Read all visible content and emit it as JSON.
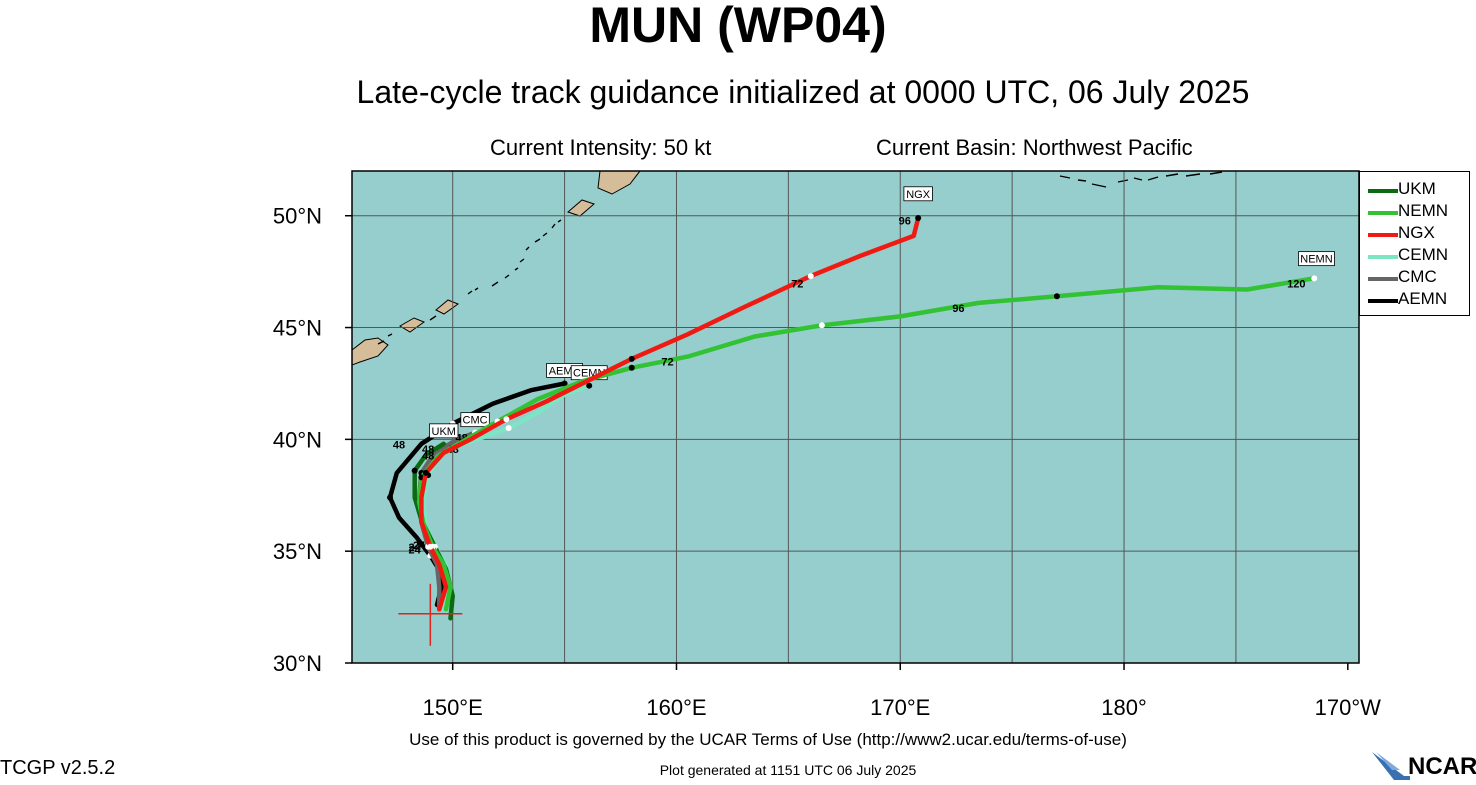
{
  "header": {
    "title": "MUN (WP04)",
    "subtitle": "Late-cycle track guidance initialized at 0000 UTC, 06 July 2025",
    "intensity": "Current Intensity: 50 kt",
    "basin": "Current Basin: Northwest Pacific"
  },
  "colors": {
    "ocean": "#96cecd",
    "land": "#d6bd9a",
    "grid": "#555555"
  },
  "legend": [
    {
      "name": "UKM",
      "color": "#0b6b13"
    },
    {
      "name": "NEMN",
      "color": "#33c233"
    },
    {
      "name": "NGX",
      "color": "#ef1b12"
    },
    {
      "name": "CEMN",
      "color": "#7ce5c4"
    },
    {
      "name": "CMC",
      "color": "#666666"
    },
    {
      "name": "AEMN",
      "color": "#000000"
    }
  ],
  "chart_data": {
    "type": "line",
    "title": "MUN (WP04)",
    "xlim": [
      145.5,
      -169.5
    ],
    "ylim": [
      30,
      52
    ],
    "x_ticks": [
      {
        "lon": 150,
        "label": "150°E"
      },
      {
        "lon": 160,
        "label": "160°E"
      },
      {
        "lon": 170,
        "label": "170°E"
      },
      {
        "lon": 180,
        "label": "180°"
      },
      {
        "lon": 190,
        "label": "170°W"
      }
    ],
    "y_ticks": [
      {
        "lat": 30,
        "label": "30°N"
      },
      {
        "lat": 35,
        "label": "35°N"
      },
      {
        "lat": 40,
        "label": "40°N"
      },
      {
        "lat": 45,
        "label": "45°N"
      },
      {
        "lat": 50,
        "label": "50°N"
      }
    ],
    "current_position": {
      "lon": 149.0,
      "lat": 32.2
    },
    "series": [
      {
        "name": "AEMN",
        "color": "#000000",
        "track": [
          [
            149.3,
            32.6
          ],
          [
            149.5,
            33.4
          ],
          [
            149.5,
            34.0
          ],
          [
            149.0,
            34.8
          ],
          [
            148.4,
            35.6
          ],
          [
            147.6,
            36.5
          ],
          [
            147.2,
            37.4
          ],
          [
            147.5,
            38.5
          ],
          [
            148.6,
            39.8
          ],
          [
            150.0,
            40.7
          ],
          [
            151.8,
            41.6
          ],
          [
            153.5,
            42.2
          ],
          [
            155.0,
            42.5
          ]
        ],
        "labels": [
          {
            "lon": 148.3,
            "lat": 35.0,
            "text": "24"
          },
          {
            "lon": 147.6,
            "lat": 39.6,
            "text": "48"
          }
        ],
        "end_label": {
          "lon": 155.0,
          "lat": 42.5,
          "text": "AEMN"
        }
      },
      {
        "name": "CMC",
        "color": "#666666",
        "track": [
          [
            149.4,
            32.4
          ],
          [
            149.4,
            33.4
          ],
          [
            149.3,
            34.4
          ],
          [
            148.9,
            35.2
          ],
          [
            148.6,
            36.3
          ],
          [
            148.5,
            37.4
          ],
          [
            148.6,
            38.5
          ],
          [
            149.2,
            39.4
          ],
          [
            150.2,
            40.0
          ],
          [
            151.0,
            40.3
          ]
        ],
        "labels": [
          {
            "lon": 148.3,
            "lat": 34.9,
            "text": "24"
          },
          {
            "lon": 150.4,
            "lat": 39.9,
            "text": "48"
          }
        ],
        "end_label": {
          "lon": 151.0,
          "lat": 40.3,
          "text": "CMC"
        }
      },
      {
        "name": "CEMN",
        "color": "#7ce5c4",
        "track": [
          [
            149.6,
            32.4
          ],
          [
            149.9,
            33.4
          ],
          [
            149.7,
            34.4
          ],
          [
            149.2,
            35.2
          ],
          [
            148.8,
            36.2
          ],
          [
            148.7,
            37.2
          ],
          [
            148.9,
            38.4
          ],
          [
            149.6,
            39.4
          ],
          [
            150.8,
            39.9
          ],
          [
            152.5,
            40.5
          ],
          [
            153.8,
            41.2
          ],
          [
            155.0,
            42.0
          ],
          [
            156.1,
            42.4
          ]
        ],
        "labels": [
          {
            "lon": 150.0,
            "lat": 39.4,
            "text": "48"
          }
        ],
        "end_label": {
          "lon": 156.1,
          "lat": 42.4,
          "text": "CEMN"
        }
      },
      {
        "name": "UKM",
        "color": "#0b6b13",
        "track": [
          [
            149.9,
            32.0
          ],
          [
            150.0,
            33.0
          ],
          [
            149.7,
            34.2
          ],
          [
            149.2,
            35.2
          ],
          [
            148.6,
            36.4
          ],
          [
            148.3,
            37.4
          ],
          [
            148.3,
            38.6
          ],
          [
            148.8,
            39.3
          ],
          [
            149.6,
            39.8
          ]
        ],
        "labels": [
          {
            "lon": 148.5,
            "lat": 35.1,
            "text": "24"
          },
          {
            "lon": 148.9,
            "lat": 39.4,
            "text": "48"
          }
        ],
        "end_label": {
          "lon": 149.6,
          "lat": 39.8,
          "text": "UKM"
        }
      },
      {
        "name": "NEMN",
        "color": "#33c233",
        "track": [
          [
            149.7,
            32.4
          ],
          [
            149.9,
            33.4
          ],
          [
            149.6,
            34.4
          ],
          [
            149.1,
            35.2
          ],
          [
            148.7,
            36.2
          ],
          [
            148.5,
            37.2
          ],
          [
            148.6,
            38.3
          ],
          [
            149.4,
            39.3
          ],
          [
            150.6,
            40.0
          ],
          [
            152.0,
            40.8
          ],
          [
            153.8,
            41.8
          ],
          [
            155.8,
            42.6
          ],
          [
            158.0,
            43.2
          ],
          [
            160.5,
            43.7
          ],
          [
            163.5,
            44.6
          ],
          [
            166.5,
            45.1
          ],
          [
            170.0,
            45.5
          ],
          [
            173.5,
            46.1
          ],
          [
            177.0,
            46.4
          ],
          [
            181.5,
            46.8
          ],
          [
            185.5,
            46.7
          ],
          [
            188.5,
            47.2
          ]
        ],
        "labels": [
          {
            "lon": 148.9,
            "lat": 39.1,
            "text": "48"
          },
          {
            "lon": 159.6,
            "lat": 43.3,
            "text": "72"
          },
          {
            "lon": 172.6,
            "lat": 45.7,
            "text": "96"
          },
          {
            "lon": 187.7,
            "lat": 46.8,
            "text": "120"
          }
        ],
        "end_label": {
          "lon": 188.6,
          "lat": 47.5,
          "text": "NEMN"
        }
      },
      {
        "name": "NGX",
        "color": "#ef1b12",
        "track": [
          [
            149.4,
            32.4
          ],
          [
            149.7,
            33.4
          ],
          [
            149.4,
            34.4
          ],
          [
            149.0,
            35.2
          ],
          [
            148.6,
            36.3
          ],
          [
            148.6,
            37.4
          ],
          [
            148.8,
            38.5
          ],
          [
            149.6,
            39.4
          ],
          [
            150.8,
            40.0
          ],
          [
            152.4,
            40.9
          ],
          [
            154.2,
            41.7
          ],
          [
            156.0,
            42.6
          ],
          [
            158.0,
            43.6
          ],
          [
            160.5,
            44.7
          ],
          [
            163.0,
            45.9
          ],
          [
            166.0,
            47.3
          ],
          [
            168.2,
            48.2
          ],
          [
            170.6,
            49.1
          ],
          [
            170.8,
            49.9
          ]
        ],
        "labels": [
          {
            "lon": 165.4,
            "lat": 46.8,
            "text": "72"
          },
          {
            "lon": 170.2,
            "lat": 49.6,
            "text": "96"
          }
        ],
        "end_label": {
          "lon": 170.8,
          "lat": 50.4,
          "text": "NGX"
        }
      }
    ]
  },
  "footer": {
    "terms": "Use of this product is governed by the UCAR Terms of Use (http://www2.ucar.edu/terms-of-use)",
    "version": "TCGP v2.5.2",
    "generated": "Plot generated at 1151 UTC   06 July 2025",
    "logo_text": "NCAR"
  }
}
